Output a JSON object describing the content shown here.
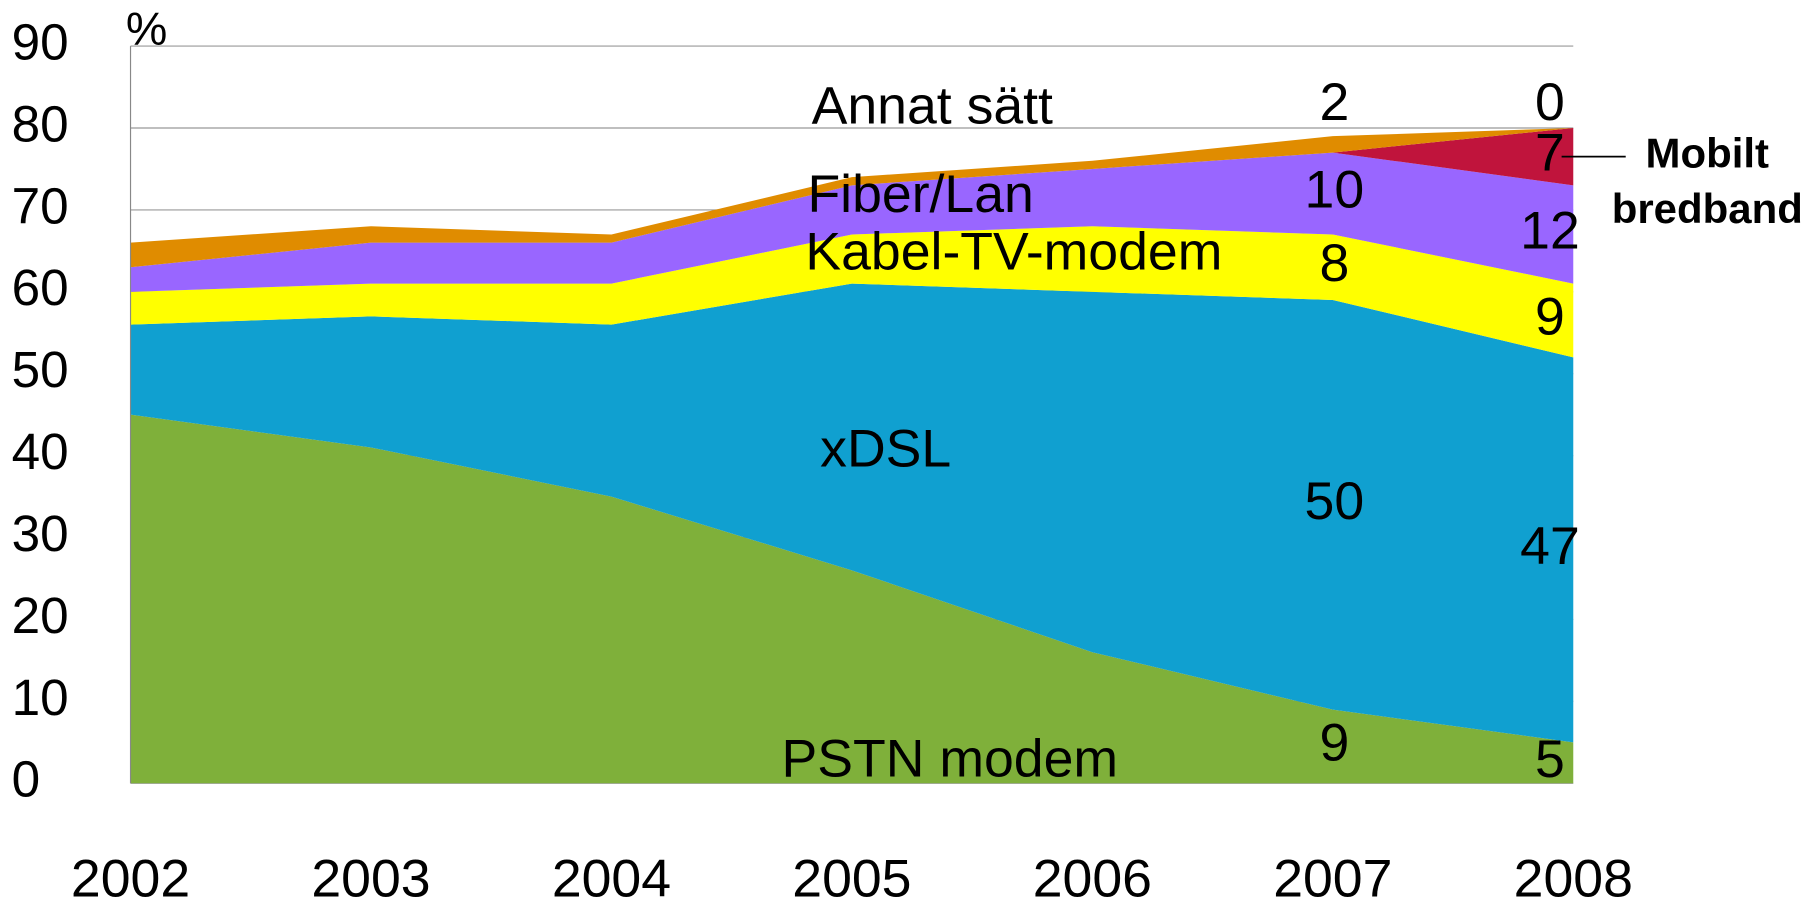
{
  "chart_data": {
    "type": "stacked_area",
    "y_axis_label": "%",
    "categories": [
      "2002",
      "2003",
      "2004",
      "2005",
      "2006",
      "2007",
      "2008"
    ],
    "ylim": [
      0,
      90
    ],
    "yticks": [
      0,
      10,
      20,
      30,
      40,
      50,
      60,
      70,
      80,
      90
    ],
    "grid": true,
    "series": [
      {
        "name": "PSTN modem",
        "color": "#7fb03a",
        "values": [
          45,
          41,
          35,
          26,
          16,
          9,
          5
        ]
      },
      {
        "name": "xDSL",
        "color": "#10a0d0",
        "values": [
          11,
          16,
          21,
          35,
          44,
          50,
          47
        ]
      },
      {
        "name": "Kabel-TV-modem",
        "color": "#ffff00",
        "values": [
          4,
          4,
          5,
          6,
          8,
          8,
          9
        ]
      },
      {
        "name": "Fiber/Lan",
        "color": "#9966ff",
        "values": [
          3,
          5,
          5,
          6,
          7,
          10,
          12
        ]
      },
      {
        "name": "Mobilt bredband",
        "color": "#c0143c",
        "values": [
          0,
          0,
          0,
          0,
          0,
          0,
          7
        ]
      },
      {
        "name": "Annat sätt",
        "color": "#e08c00",
        "values": [
          3,
          2,
          1,
          1,
          1,
          2,
          0
        ]
      }
    ]
  }
}
